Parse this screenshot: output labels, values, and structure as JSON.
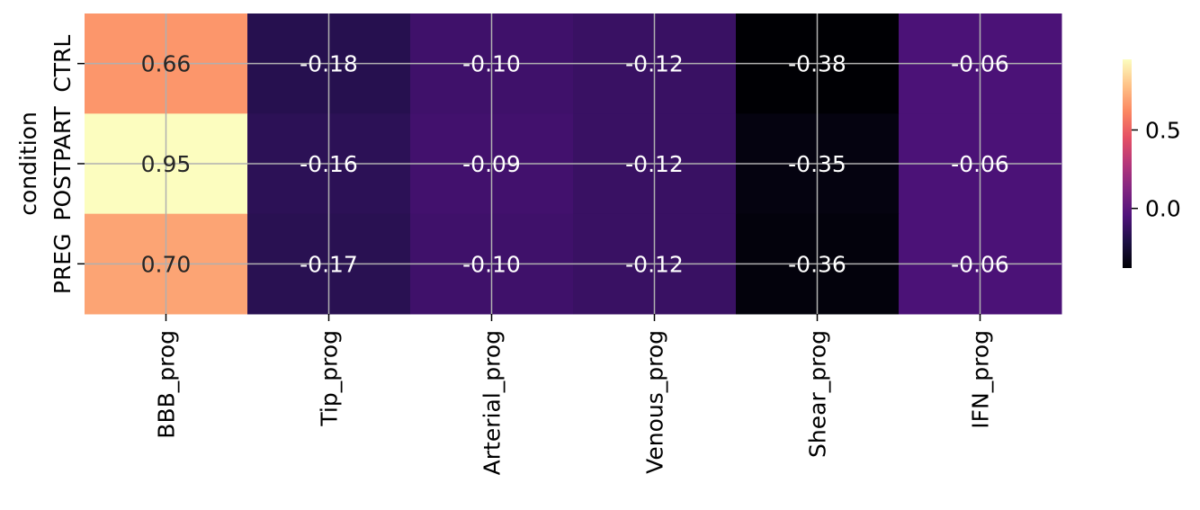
{
  "chart_data": {
    "type": "heatmap",
    "title": "",
    "xlabel": "",
    "ylabel": "condition",
    "rows": [
      "CTRL",
      "POSTPART",
      "PREG"
    ],
    "columns": [
      "BBB_prog",
      "Tip_prog",
      "Arterial_prog",
      "Venous_prog",
      "Shear_prog",
      "IFN_prog"
    ],
    "values": [
      [
        0.66,
        -0.18,
        -0.1,
        -0.12,
        -0.38,
        -0.06
      ],
      [
        0.95,
        -0.16,
        -0.09,
        -0.12,
        -0.35,
        -0.06
      ],
      [
        0.7,
        -0.17,
        -0.1,
        -0.12,
        -0.36,
        -0.06
      ]
    ],
    "annotations": [
      [
        "0.66",
        "-0.18",
        "-0.10",
        "-0.12",
        "-0.38",
        "-0.06"
      ],
      [
        "0.95",
        "-0.16",
        "-0.09",
        "-0.12",
        "-0.35",
        "-0.06"
      ],
      [
        "0.70",
        "-0.17",
        "-0.10",
        "-0.12",
        "-0.36",
        "-0.06"
      ]
    ],
    "colormap": "magma",
    "vmin": -0.38,
    "vmax": 0.95,
    "colorbar_ticks": [
      {
        "value": 0.5,
        "label": "0.5"
      },
      {
        "value": 0.0,
        "label": "0.0"
      }
    ],
    "grid": true,
    "colorbar_position": "right"
  }
}
